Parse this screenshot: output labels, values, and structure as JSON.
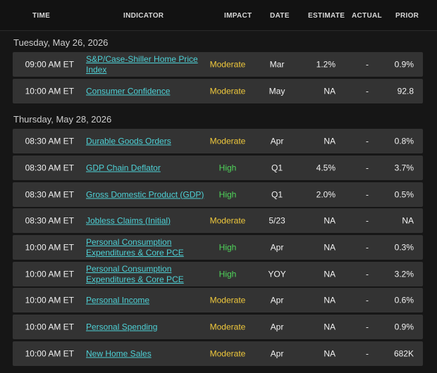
{
  "colors": {
    "background": "#161616",
    "row": "#333333",
    "link": "#4ed1d6",
    "moderate": "#f0c93c",
    "high": "#4fd55a"
  },
  "columns": {
    "time": "TIME",
    "indicator": "INDICATOR",
    "impact": "IMPACT",
    "date": "DATE",
    "estimate": "ESTIMATE",
    "actual": "ACTUAL",
    "prior": "PRIOR"
  },
  "groups": [
    {
      "date": "Tuesday, May 26, 2026",
      "rows": [
        {
          "time": "09:00 AM ET",
          "indicator": "S&P/Case-Shiller Home Price Index",
          "impact": "Moderate",
          "date": "Mar",
          "estimate": "1.2%",
          "actual": "-",
          "prior": "0.9%"
        },
        {
          "time": "10:00 AM ET",
          "indicator": "Consumer Confidence",
          "impact": "Moderate",
          "date": "May",
          "estimate": "NA",
          "actual": "-",
          "prior": "92.8"
        }
      ]
    },
    {
      "date": "Thursday, May 28, 2026",
      "rows": [
        {
          "time": "08:30 AM ET",
          "indicator": "Durable Goods Orders",
          "impact": "Moderate",
          "date": "Apr",
          "estimate": "NA",
          "actual": "-",
          "prior": "0.8%"
        },
        {
          "time": "08:30 AM ET",
          "indicator": "GDP Chain Deflator",
          "impact": "High",
          "date": "Q1",
          "estimate": "4.5%",
          "actual": "-",
          "prior": "3.7%"
        },
        {
          "time": "08:30 AM ET",
          "indicator": "Gross Domestic Product (GDP)",
          "impact": "High",
          "date": "Q1",
          "estimate": "2.0%",
          "actual": "-",
          "prior": "0.5%"
        },
        {
          "time": "08:30 AM ET",
          "indicator": "Jobless Claims (Initial)",
          "impact": "Moderate",
          "date": "5/23",
          "estimate": "NA",
          "actual": "-",
          "prior": "NA"
        },
        {
          "time": "10:00 AM ET",
          "indicator": "Personal Consumption Expenditures & Core PCE",
          "impact": "High",
          "date": "Apr",
          "estimate": "NA",
          "actual": "-",
          "prior": "0.3%"
        },
        {
          "time": "10:00 AM ET",
          "indicator": "Personal Consumption Expenditures & Core PCE",
          "impact": "High",
          "date": "YOY",
          "estimate": "NA",
          "actual": "-",
          "prior": "3.2%"
        },
        {
          "time": "10:00 AM ET",
          "indicator": "Personal Income",
          "impact": "Moderate",
          "date": "Apr",
          "estimate": "NA",
          "actual": "-",
          "prior": "0.6%"
        },
        {
          "time": "10:00 AM ET",
          "indicator": "Personal Spending",
          "impact": "Moderate",
          "date": "Apr",
          "estimate": "NA",
          "actual": "-",
          "prior": "0.9%"
        },
        {
          "time": "10:00 AM ET",
          "indicator": "New Home Sales",
          "impact": "Moderate",
          "date": "Apr",
          "estimate": "NA",
          "actual": "-",
          "prior": "682K"
        }
      ]
    }
  ]
}
